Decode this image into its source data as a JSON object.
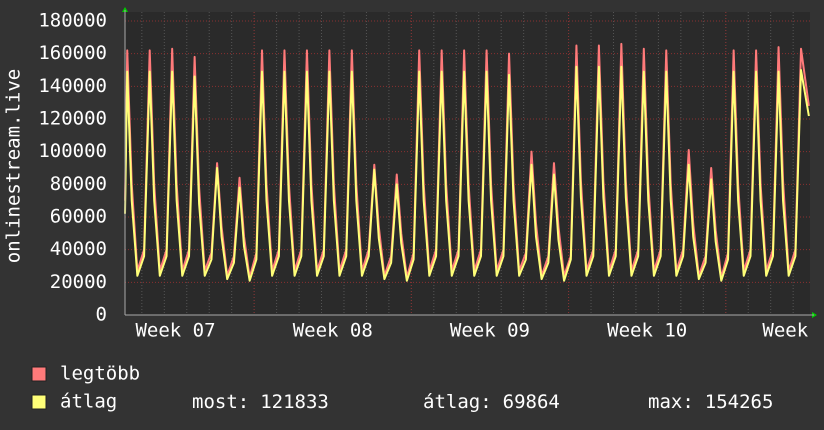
{
  "chart_data": {
    "type": "line",
    "y_label": "onlinestream.live",
    "xlim": [
      0,
      30.5
    ],
    "xticks": [
      {
        "value": 2.25,
        "label": "Week 07"
      },
      {
        "value": 9.25,
        "label": "Week 08"
      },
      {
        "value": 16.25,
        "label": "Week 09"
      },
      {
        "value": 23.25,
        "label": "Week 10"
      },
      {
        "value": 29.4,
        "label": "Week"
      }
    ],
    "xgrid_major": [
      5.75,
      12.75,
      19.75,
      26.75
    ],
    "ylim": [
      0,
      180000
    ],
    "yticks": [
      0,
      20000,
      40000,
      60000,
      80000,
      100000,
      120000,
      140000,
      160000,
      180000
    ],
    "grid": true,
    "x": [
      0,
      0.1,
      0.3,
      0.55,
      0.85,
      1.1,
      1.3,
      1.55,
      1.85,
      2.1,
      2.3,
      2.55,
      2.85,
      3.1,
      3.3,
      3.55,
      3.85,
      4.1,
      4.3,
      4.55,
      4.85,
      5.1,
      5.3,
      5.55,
      5.85,
      6.1,
      6.3,
      6.55,
      6.85,
      7.1,
      7.3,
      7.55,
      7.85,
      8.1,
      8.3,
      8.55,
      8.85,
      9.1,
      9.3,
      9.55,
      9.85,
      10.1,
      10.3,
      10.55,
      10.85,
      11.1,
      11.3,
      11.55,
      11.85,
      12.1,
      12.3,
      12.55,
      12.85,
      13.1,
      13.3,
      13.55,
      13.85,
      14.1,
      14.3,
      14.55,
      14.85,
      15.1,
      15.3,
      15.55,
      15.85,
      16.1,
      16.3,
      16.55,
      16.85,
      17.1,
      17.3,
      17.55,
      17.85,
      18.1,
      18.3,
      18.55,
      18.85,
      19.1,
      19.3,
      19.55,
      19.85,
      20.1,
      20.3,
      20.55,
      20.85,
      21.1,
      21.3,
      21.55,
      21.85,
      22.1,
      22.3,
      22.55,
      22.85,
      23.1,
      23.3,
      23.55,
      23.85,
      24.1,
      24.3,
      24.55,
      24.85,
      25.1,
      25.3,
      25.55,
      25.85,
      26.1,
      26.3,
      26.55,
      26.85,
      27.1,
      27.3,
      27.55,
      27.85,
      28.1,
      28.3,
      28.55,
      28.85,
      29.1,
      29.3,
      29.55,
      29.85,
      30.1,
      30.45
    ],
    "series": [
      {
        "name": "legtöbb",
        "color": "#ff7a7a",
        "values": [
          70000,
          162000,
          80000,
          27000,
          40000,
          162000,
          80000,
          27000,
          40000,
          163000,
          80000,
          27000,
          40000,
          158000,
          78000,
          27000,
          38000,
          93000,
          54000,
          24000,
          36000,
          84000,
          48000,
          23000,
          38000,
          162000,
          80000,
          27000,
          40000,
          162000,
          80000,
          27000,
          40000,
          162000,
          80000,
          27000,
          40000,
          162000,
          80000,
          27000,
          40000,
          162000,
          80000,
          27000,
          40000,
          92000,
          54000,
          24000,
          36000,
          86000,
          50000,
          23000,
          38000,
          162000,
          80000,
          27000,
          40000,
          162000,
          80000,
          27000,
          40000,
          162000,
          80000,
          27000,
          40000,
          162000,
          80000,
          27000,
          40000,
          160000,
          80000,
          27000,
          38000,
          100000,
          56000,
          24000,
          36000,
          93000,
          54000,
          24000,
          36000,
          165000,
          82000,
          27000,
          40000,
          165000,
          82000,
          27000,
          40000,
          166000,
          82000,
          27000,
          40000,
          163000,
          80000,
          27000,
          40000,
          162000,
          80000,
          27000,
          40000,
          101000,
          56000,
          24000,
          36000,
          90000,
          52000,
          23000,
          38000,
          162000,
          80000,
          27000,
          40000,
          162000,
          80000,
          27000,
          40000,
          164000,
          82000,
          27000,
          40000,
          163000,
          128000
        ]
      },
      {
        "name": "átlag",
        "color": "#ffff78",
        "values": [
          62000,
          149000,
          70000,
          24000,
          36000,
          149000,
          70000,
          24000,
          36000,
          149000,
          70000,
          24000,
          36000,
          146000,
          68000,
          24000,
          34000,
          90000,
          48000,
          22000,
          32000,
          78000,
          42000,
          21000,
          34000,
          149000,
          70000,
          24000,
          36000,
          149000,
          70000,
          24000,
          36000,
          149000,
          70000,
          24000,
          36000,
          149000,
          70000,
          24000,
          36000,
          149000,
          70000,
          24000,
          36000,
          89000,
          47000,
          22000,
          32000,
          80000,
          44000,
          21000,
          34000,
          149000,
          70000,
          24000,
          36000,
          149000,
          70000,
          24000,
          36000,
          149000,
          70000,
          24000,
          36000,
          149000,
          70000,
          24000,
          36000,
          147000,
          70000,
          24000,
          34000,
          92000,
          48000,
          22000,
          32000,
          86000,
          46000,
          21000,
          34000,
          152000,
          72000,
          24000,
          36000,
          152000,
          72000,
          24000,
          36000,
          152000,
          72000,
          24000,
          36000,
          149000,
          70000,
          24000,
          36000,
          149000,
          70000,
          24000,
          36000,
          92000,
          48000,
          22000,
          32000,
          83000,
          45000,
          21000,
          34000,
          149000,
          70000,
          24000,
          36000,
          149000,
          70000,
          24000,
          36000,
          149000,
          70000,
          24000,
          36000,
          150000,
          121833
        ]
      }
    ],
    "stats": [
      {
        "label": "most:",
        "value": 121833
      },
      {
        "label": "átlag:",
        "value": 69864
      },
      {
        "label": "max:",
        "value": 154265
      }
    ]
  }
}
